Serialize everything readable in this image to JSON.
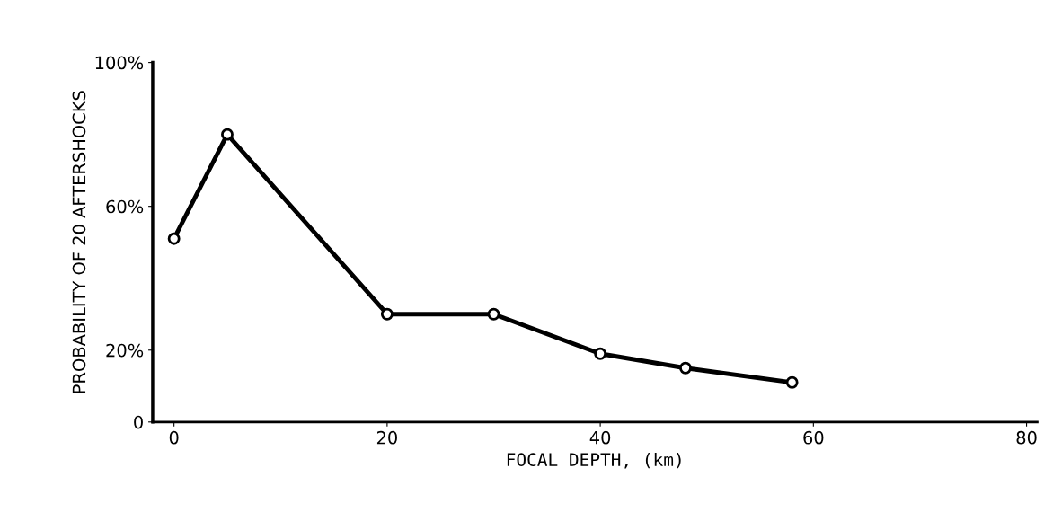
{
  "chart_data": {
    "type": "line",
    "xlabel": "FOCAL DEPTH, (km)",
    "ylabel": "PROBABILITY OF 20 AFTERSHOCKS",
    "x": [
      0,
      5,
      20,
      30,
      40,
      48,
      58
    ],
    "series": [
      {
        "color": "#000000",
        "values": [
          51,
          80,
          30,
          30,
          19,
          15,
          11
        ]
      }
    ],
    "xlim": [
      -2,
      81
    ],
    "xticks": [
      0,
      20,
      40,
      60,
      80
    ],
    "ylim": [
      0,
      100
    ],
    "yticks": [
      {
        "value": 0,
        "label": "0"
      },
      {
        "value": 20,
        "label": "20%"
      },
      {
        "value": 60,
        "label": "60%"
      },
      {
        "value": 100,
        "label": "100%"
      }
    ],
    "marker": "circle",
    "line_style": "solid",
    "grid": false,
    "legend": false
  }
}
